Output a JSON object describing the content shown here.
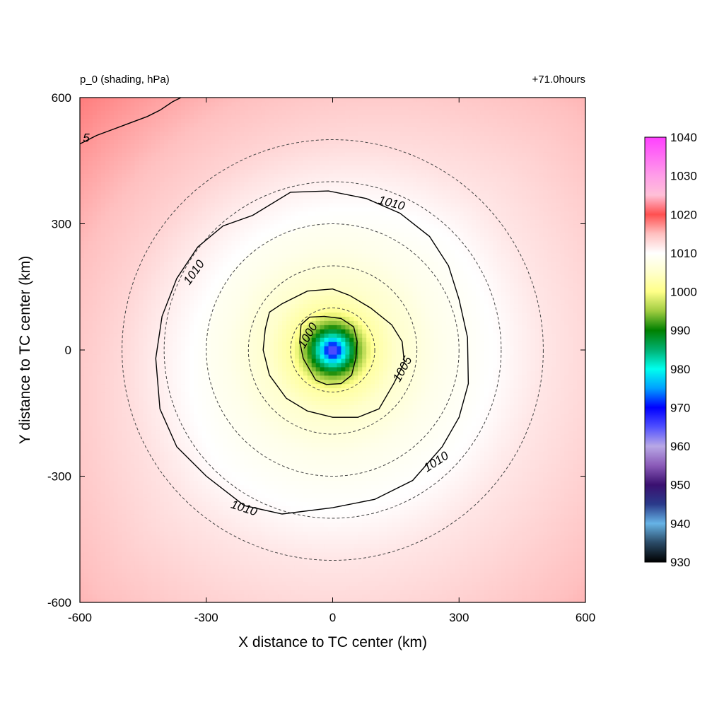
{
  "chart_data": {
    "type": "heatmap",
    "title_left": "p_0 (shading, hPa)",
    "title_right": "+71.0hours",
    "xlabel": "X distance to TC center (km)",
    "ylabel": "Y distance to TC center (km)",
    "xlim": [
      -600,
      600
    ],
    "ylim": [
      -600,
      600
    ],
    "x_ticks": [
      "-600",
      "-300",
      "0",
      "300",
      "600"
    ],
    "y_ticks": [
      "600",
      "300",
      "0",
      "-300",
      "-600"
    ],
    "x_tick_values": [
      -600,
      -300,
      0,
      300,
      600
    ],
    "y_tick_values": [
      600,
      300,
      0,
      -300,
      -600
    ],
    "colorbar": {
      "min": 930,
      "max": 1040,
      "labels": [
        "1040",
        "1030",
        "1020",
        "1010",
        "1000",
        "990",
        "980",
        "970",
        "960",
        "950",
        "940",
        "930"
      ],
      "label_values": [
        1040,
        1030,
        1020,
        1010,
        1000,
        990,
        980,
        970,
        960,
        950,
        940,
        930
      ],
      "stops": [
        {
          "value": 930,
          "color": "#000000"
        },
        {
          "value": 935,
          "color": "#2a4a66"
        },
        {
          "value": 940,
          "color": "#66b3e6"
        },
        {
          "value": 945,
          "color": "#2a3a8a"
        },
        {
          "value": 950,
          "color": "#3a1070"
        },
        {
          "value": 955,
          "color": "#8a5ab8"
        },
        {
          "value": 960,
          "color": "#b8a8e6"
        },
        {
          "value": 965,
          "color": "#5050ff"
        },
        {
          "value": 970,
          "color": "#0000ff"
        },
        {
          "value": 975,
          "color": "#00a0ff"
        },
        {
          "value": 980,
          "color": "#00ffee"
        },
        {
          "value": 985,
          "color": "#00b070"
        },
        {
          "value": 990,
          "color": "#008000"
        },
        {
          "value": 995,
          "color": "#a0cc40"
        },
        {
          "value": 1000,
          "color": "#ffff88"
        },
        {
          "value": 1005,
          "color": "#ffffcc"
        },
        {
          "value": 1010,
          "color": "#ffffff"
        },
        {
          "value": 1015,
          "color": "#ffc0c0"
        },
        {
          "value": 1020,
          "color": "#ff5050"
        },
        {
          "value": 1025,
          "color": "#ffc0d8"
        },
        {
          "value": 1030,
          "color": "#ff9ee8"
        },
        {
          "value": 1040,
          "color": "#ff40ff"
        }
      ]
    },
    "pressure_field": {
      "center_pressure": 960,
      "radius_pressure_profile": [
        {
          "r_km": 0,
          "p": 960
        },
        {
          "r_km": 20,
          "p": 975
        },
        {
          "r_km": 40,
          "p": 985
        },
        {
          "r_km": 60,
          "p": 993
        },
        {
          "r_km": 80,
          "p": 998
        },
        {
          "r_km": 100,
          "p": 1002
        },
        {
          "r_km": 150,
          "p": 1005
        },
        {
          "r_km": 250,
          "p": 1008
        },
        {
          "r_km": 380,
          "p": 1010
        },
        {
          "r_km": 500,
          "p": 1012
        },
        {
          "r_km": 700,
          "p": 1014
        },
        {
          "r_km": 900,
          "p": 1016
        }
      ]
    },
    "range_rings_km": [
      100,
      200,
      300,
      400,
      500
    ],
    "contours": [
      {
        "level": "1000",
        "label_positions": [
          {
            "x": -60,
            "y": 35,
            "angle": -60
          }
        ],
        "points": [
          [
            -75,
            60
          ],
          [
            -55,
            78
          ],
          [
            -20,
            80
          ],
          [
            20,
            75
          ],
          [
            50,
            55
          ],
          [
            58,
            20
          ],
          [
            55,
            -20
          ],
          [
            45,
            -60
          ],
          [
            20,
            -80
          ],
          [
            -15,
            -82
          ],
          [
            -40,
            -72
          ],
          [
            -70,
            -20
          ],
          [
            -78,
            20
          ]
        ]
      },
      {
        "level": "1005",
        "label_positions": [
          {
            "x": 165,
            "y": -45,
            "angle": -62
          }
        ],
        "points": [
          [
            -150,
            90
          ],
          [
            -120,
            110
          ],
          [
            -60,
            140
          ],
          [
            0,
            145
          ],
          [
            40,
            130
          ],
          [
            90,
            100
          ],
          [
            140,
            60
          ],
          [
            165,
            20
          ],
          [
            170,
            -30
          ],
          [
            145,
            -80
          ],
          [
            110,
            -140
          ],
          [
            60,
            -160
          ],
          [
            0,
            -160
          ],
          [
            -60,
            -145
          ],
          [
            -110,
            -115
          ],
          [
            -150,
            -60
          ],
          [
            -165,
            0
          ],
          [
            -160,
            50
          ]
        ]
      },
      {
        "level": "1010",
        "label_positions": [
          {
            "x": 140,
            "y": 350,
            "angle": 15
          },
          {
            "x": -330,
            "y": 185,
            "angle": -55
          },
          {
            "x": 245,
            "y": -265,
            "angle": -33
          },
          {
            "x": -210,
            "y": -375,
            "angle": 18
          }
        ],
        "points": [
          [
            -190,
            320
          ],
          [
            -100,
            375
          ],
          [
            -10,
            378
          ],
          [
            80,
            360
          ],
          [
            160,
            325
          ],
          [
            230,
            270
          ],
          [
            275,
            200
          ],
          [
            300,
            120
          ],
          [
            320,
            30
          ],
          [
            322,
            -80
          ],
          [
            300,
            -160
          ],
          [
            260,
            -230
          ],
          [
            190,
            -310
          ],
          [
            100,
            -355
          ],
          [
            0,
            -375
          ],
          [
            -120,
            -390
          ],
          [
            -210,
            -370
          ],
          [
            -300,
            -300
          ],
          [
            -370,
            -230
          ],
          [
            -410,
            -140
          ],
          [
            -420,
            -20
          ],
          [
            -405,
            80
          ],
          [
            -370,
            170
          ],
          [
            -320,
            245
          ],
          [
            -260,
            295
          ]
        ]
      },
      {
        "level": "1015",
        "label_text": "5",
        "label_positions": [
          {
            "x": -585,
            "y": 505,
            "angle": 0
          }
        ],
        "points": [
          [
            -600,
            490
          ],
          [
            -560,
            510
          ],
          [
            -520,
            525
          ],
          [
            -480,
            540
          ],
          [
            -440,
            555
          ],
          [
            -410,
            570
          ],
          [
            -380,
            590
          ],
          [
            -360,
            600
          ]
        ]
      }
    ]
  }
}
